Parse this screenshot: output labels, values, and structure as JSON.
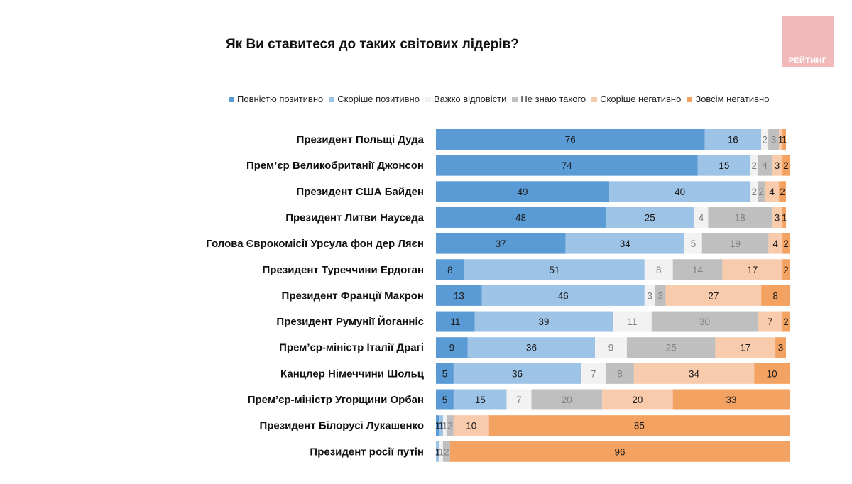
{
  "chart_data": {
    "type": "bar",
    "orientation": "horizontal",
    "stacked": true,
    "title": "Як Ви ставитеся до таких світових лідерів?",
    "xlabel": "",
    "ylabel": "",
    "xlim": [
      0,
      100
    ],
    "legend_position": "top",
    "categories": [
      "Президент Польщі Дуда",
      "Прем’єр Великобританії Джонсон",
      "Президент США Байден",
      "Президент Литви Науседа",
      "Голова Єврокомісії Урсула фон дер Ляєн",
      "Президент Туреччини Ердоган",
      "Президент Франції Макрон",
      "Президент Румунії Йоганніс",
      "Прем’єр-міністр Італії Драгі",
      "Канцлер Німеччини Шольц",
      "Прем’єр-міністр Угорщини Орбан",
      "Президент Білорусі Лукашенко",
      "Президент росії путін"
    ],
    "series": [
      {
        "name": "Повністю позитивно",
        "color": "#5b9bd5",
        "label_color": "#1a1a1a",
        "values": [
          76,
          74,
          49,
          48,
          37,
          8,
          13,
          11,
          9,
          5,
          5,
          1,
          0
        ]
      },
      {
        "name": "Скоріше позитивно",
        "color": "#9dc3e6",
        "label_color": "#1a1a1a",
        "values": [
          16,
          15,
          40,
          25,
          34,
          51,
          46,
          39,
          36,
          36,
          15,
          1,
          1
        ]
      },
      {
        "name": "Важко відповісти",
        "color": "#f2f2f2",
        "label_color": "#7f7f7f",
        "values": [
          2,
          2,
          2,
          4,
          5,
          8,
          3,
          11,
          9,
          7,
          7,
          1,
          1
        ]
      },
      {
        "name": "Не знаю такого",
        "color": "#bfbfbf",
        "label_color": "#7f7f7f",
        "values": [
          3,
          4,
          2,
          18,
          19,
          14,
          3,
          30,
          25,
          8,
          20,
          2,
          2
        ]
      },
      {
        "name": "Скоріше негативно",
        "color": "#f8cbad",
        "label_color": "#1a1a1a",
        "values": [
          1,
          3,
          4,
          3,
          4,
          17,
          27,
          7,
          17,
          34,
          20,
          10,
          0
        ]
      },
      {
        "name": "Зовсім негативно",
        "color": "#f4a261",
        "label_color": "#1a1a1a",
        "values": [
          1,
          2,
          2,
          1,
          2,
          2,
          8,
          2,
          3,
          10,
          33,
          85,
          96
        ]
      }
    ]
  },
  "logo": {
    "text": "РЕЙТИНГ"
  }
}
